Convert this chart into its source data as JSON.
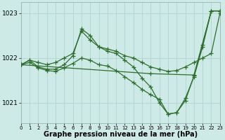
{
  "bg_color": "#ceeae7",
  "grid_color": "#b0d4d0",
  "line_color": "#2d6e2d",
  "marker_color": "#2d6e2d",
  "xlabel": "Graphe pression niveau de la mer (hPa)",
  "xlabel_fontsize": 7,
  "xtick_labels": [
    "0",
    "1",
    "2",
    "3",
    "4",
    "5",
    "6",
    "7",
    "8",
    "9",
    "10",
    "11",
    "12",
    "13",
    "14",
    "15",
    "16",
    "17",
    "18",
    "19",
    "20",
    "21",
    "22",
    "23"
  ],
  "yticks": [
    1021,
    1022,
    1023
  ],
  "ylim": [
    1020.55,
    1023.25
  ],
  "xlim": [
    0,
    23
  ],
  "series": [
    [
      1021.85,
      1021.95,
      1021.9,
      1021.85,
      1021.9,
      1022.0,
      1022.1,
      1022.6,
      1022.4,
      null,
      null,
      null,
      null,
      null,
      null,
      null,
      null,
      null,
      null,
      null,
      null,
      null,
      null,
      1023.0
    ],
    [
      1021.85,
      1021.95,
      1021.8,
      1021.75,
      1021.75,
      1021.85,
      1022.05,
      1022.65,
      1022.5,
      1022.25,
      1022.15,
      1022.1,
      1021.95,
      1021.8,
      1021.55,
      1021.35,
      1021.0,
      1020.75,
      1020.78,
      1021.05,
      1021.6,
      null,
      1023.05,
      1023.05
    ],
    [
      1021.85,
      1021.9,
      1021.78,
      1021.72,
      1021.7,
      1021.78,
      1021.88,
      1022.0,
      1021.95,
      1021.85,
      1021.82,
      1021.72,
      1021.58,
      1021.45,
      1021.3,
      1021.18,
      1021.08,
      1020.75,
      1020.78,
      1021.1,
      1021.58,
      1022.25,
      1023.05,
      1023.05
    ],
    [
      1021.85,
      null,
      null,
      null,
      null,
      null,
      null,
      null,
      null,
      null,
      null,
      null,
      null,
      null,
      null,
      1021.65,
      null,
      null,
      null,
      null,
      1021.62,
      null,
      1023.05,
      1023.05
    ]
  ],
  "line1_x": [
    0,
    1,
    2,
    3,
    4,
    5,
    6,
    7,
    8,
    9,
    10,
    11,
    12,
    13,
    14,
    15,
    16,
    17,
    18,
    19,
    20,
    21,
    22,
    23
  ],
  "line1_y": [
    1021.85,
    1021.95,
    1021.9,
    1021.85,
    1021.9,
    1022.0,
    1022.1,
    1022.6,
    1022.4,
    1022.25,
    1022.2,
    1022.15,
    1022.05,
    1022.0,
    1021.9,
    1021.8,
    1021.75,
    1021.7,
    1021.72,
    1021.8,
    1021.9,
    1022.0,
    1022.1,
    1023.0
  ],
  "line2_x": [
    0,
    1,
    2,
    3,
    4,
    5,
    6,
    7,
    8,
    9,
    10,
    11,
    12,
    13,
    14,
    15,
    16,
    17,
    18,
    19,
    20,
    21,
    22,
    23
  ],
  "line2_y": [
    1021.85,
    1021.95,
    1021.8,
    1021.75,
    1021.75,
    1021.85,
    1022.05,
    1022.65,
    1022.5,
    1022.25,
    1022.15,
    1022.1,
    1021.95,
    1021.8,
    1021.55,
    1021.35,
    1021.0,
    1020.75,
    1020.78,
    1021.05,
    1021.6,
    1022.3,
    1023.05,
    1023.05
  ],
  "line3_x": [
    0,
    1,
    2,
    3,
    4,
    5,
    6,
    7,
    8,
    9,
    10,
    11,
    12,
    13,
    14,
    15,
    16,
    17,
    18,
    19,
    20,
    21,
    22,
    23
  ],
  "line3_y": [
    1021.85,
    1021.9,
    1021.78,
    1021.72,
    1021.7,
    1021.78,
    1021.88,
    1022.0,
    1021.95,
    1021.85,
    1021.82,
    1021.72,
    1021.58,
    1021.45,
    1021.3,
    1021.18,
    1021.08,
    1020.75,
    1020.78,
    1021.1,
    1021.58,
    1022.25,
    1023.05,
    1023.05
  ],
  "line4_x": [
    0,
    15,
    20,
    22,
    23
  ],
  "line4_y": [
    1021.85,
    1021.65,
    1021.62,
    1023.05,
    1023.05
  ]
}
